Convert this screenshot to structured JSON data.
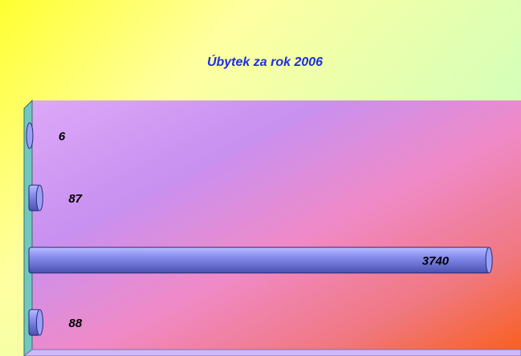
{
  "chart_data": {
    "type": "bar",
    "orientation": "horizontal",
    "title": "Úbytek za rok 2006",
    "categories": [
      null,
      null,
      null,
      null
    ],
    "values": [
      6,
      87,
      3740,
      88
    ],
    "color": "#7c84e0",
    "xlim": [
      0,
      4000
    ]
  }
}
